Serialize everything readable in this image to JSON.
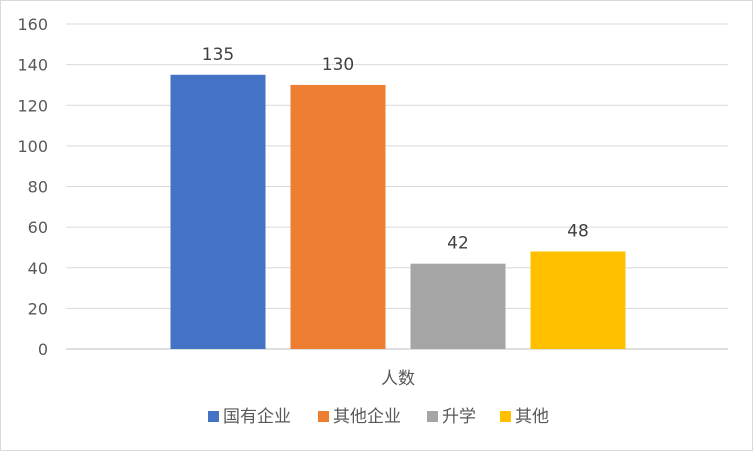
{
  "chart_data": {
    "type": "bar",
    "title": "",
    "xlabel": "",
    "ylabel": "",
    "categories": [
      "人数"
    ],
    "ylim": [
      0,
      160
    ],
    "yticks": [
      0,
      20,
      40,
      60,
      80,
      100,
      120,
      140,
      160
    ],
    "grid": true,
    "legend_position": "bottom",
    "series": [
      {
        "name": "国有企业",
        "values": [
          135
        ],
        "color": "#4472C4"
      },
      {
        "name": "其他企业",
        "values": [
          130
        ],
        "color": "#ED7D31"
      },
      {
        "name": "升学",
        "values": [
          42
        ],
        "color": "#A5A5A5"
      },
      {
        "name": "其他",
        "values": [
          48
        ],
        "color": "#FFC000"
      }
    ]
  }
}
